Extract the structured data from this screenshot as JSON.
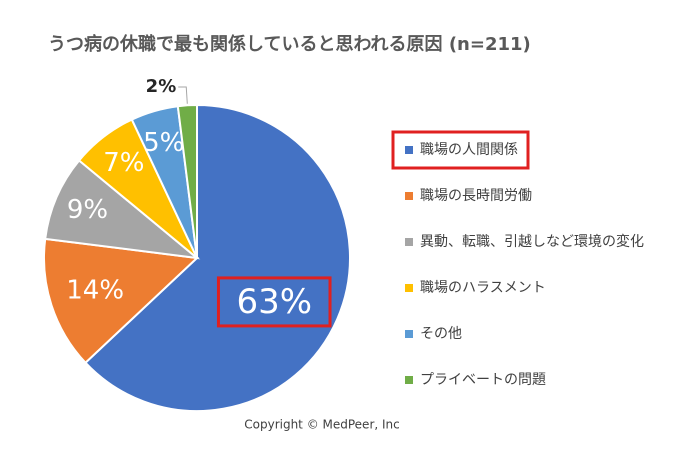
{
  "chart_data": {
    "type": "pie",
    "title": "うつ病の休職で最も関係していると思われる原因 (n=211)",
    "categories": [
      "職場の人間関係",
      "職場の長時間労働",
      "異動、転職、引越しなど環境の変化",
      "職場のハラスメント",
      "その他",
      "プライベートの問題"
    ],
    "values": [
      63,
      14,
      9,
      7,
      5,
      2
    ],
    "value_labels": [
      "63%",
      "14%",
      "9%",
      "7%",
      "5%",
      "2%"
    ],
    "colors": [
      "#4472c4",
      "#ed7d31",
      "#a5a5a5",
      "#ffc000",
      "#5b9bd5",
      "#70ad47"
    ],
    "legend": "right",
    "annotation": "Copyright © MedPeer, Inc"
  }
}
